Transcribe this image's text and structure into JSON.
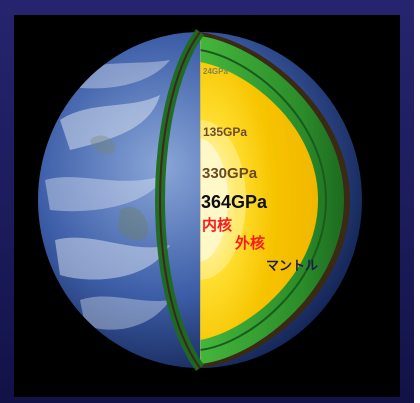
{
  "figure": {
    "labels": {
      "crust_pressure": "24GPa",
      "mantle_base_pressure": "135GPa",
      "outer_core_base_pressure": "330GPa",
      "center_pressure": "364GPa",
      "inner_core": "内核",
      "outer_core": "外核",
      "mantle": "マントル"
    },
    "colors": {
      "background_frame": "#1e1d63",
      "space": "#000000",
      "ocean": "#2e4f9a",
      "mantle_green": "#2f9a2e",
      "core_yellow": "#f3c200",
      "inner_core_white": "#ffffff",
      "label_red": "#ff1a1a",
      "label_dark": "#1d1d4a"
    }
  }
}
